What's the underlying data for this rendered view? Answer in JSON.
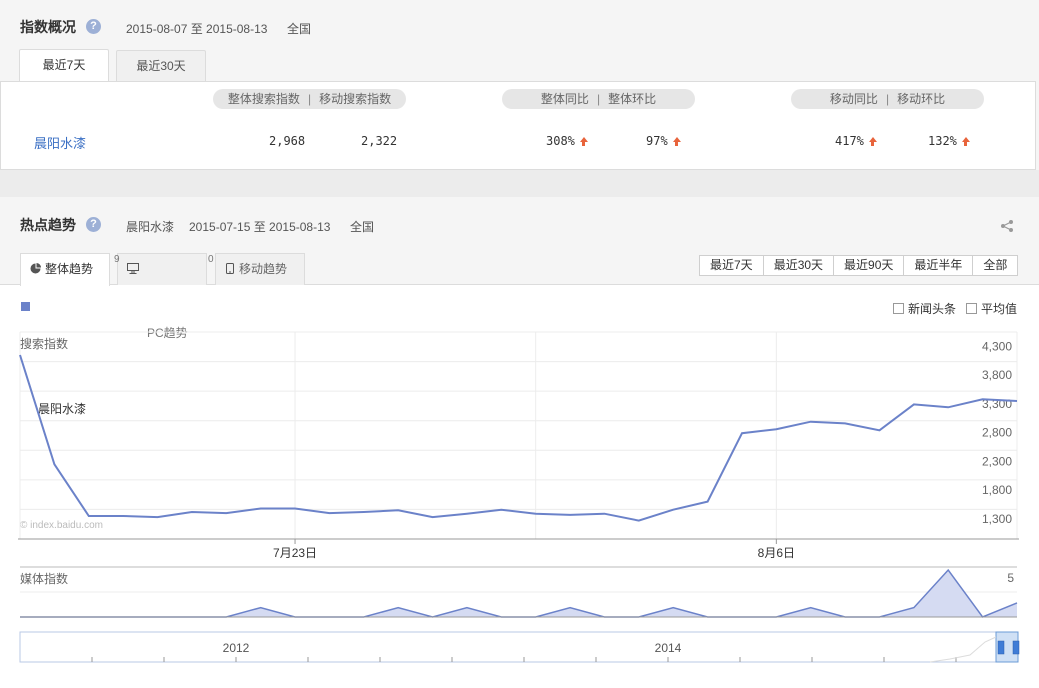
{
  "overview": {
    "title": "指数概况",
    "help": "?",
    "date_range": "2015-08-07 至 2015-08-13",
    "region": "全国",
    "tabs": [
      {
        "label": "最近7天",
        "active": true
      },
      {
        "label": "最近30天",
        "active": false
      }
    ],
    "headers": {
      "group1": [
        "整体搜索指数",
        "移动搜索指数"
      ],
      "group2": [
        "整体同比",
        "整体环比"
      ],
      "group3": [
        "移动同比",
        "移动环比"
      ],
      "separator": "|"
    },
    "row": {
      "keyword": "晨阳水漆",
      "overall_search": "2,968",
      "mobile_search": "2,322",
      "overall_yoy": "308%",
      "overall_mom": "97%",
      "mobile_yoy": "417%",
      "mobile_mom": "132%"
    }
  },
  "trend": {
    "title": "热点趋势",
    "help": "?",
    "keyword": "晨阳水漆",
    "date_range": "2015-07-15 至 2015-08-13",
    "region": "全国",
    "tabs": [
      {
        "label": "整体趋势",
        "icon": "pie-chart-icon",
        "active": true
      },
      {
        "label": "PC趋势",
        "icon": "monitor-icon",
        "active": false
      },
      {
        "label": "移动趋势",
        "icon": "mobile-icon",
        "active": false
      }
    ],
    "range_buttons": [
      "最近7天",
      "最近30天",
      "最近90天",
      "最近半年",
      "全部"
    ],
    "checkboxes": [
      "新闻头条",
      "平均值"
    ],
    "watermark": "© index.baidu.com",
    "tab_overflow_fragment_1": "9",
    "tab_overflow_fragment_2": "0",
    "legend_color": "#6b82c9"
  },
  "chart_data": [
    {
      "type": "line",
      "ylabel": "搜索指数",
      "series": [
        {
          "name": "晨阳水漆",
          "values": [
            4150,
            2250,
            1350,
            1350,
            1330,
            1420,
            1400,
            1480,
            1480,
            1400,
            1420,
            1450,
            1330,
            1390,
            1460,
            1390,
            1370,
            1390,
            1270,
            1460,
            1600,
            2790,
            2860,
            2990,
            2960,
            2840,
            3290,
            3240,
            3380,
            3350
          ]
        }
      ],
      "x_ticks": [
        {
          "label": "7月23日",
          "index": 8
        },
        {
          "label": "8月6日",
          "index": 22
        }
      ],
      "y_ticks": [
        "4,300",
        "3,800",
        "3,300",
        "2,800",
        "2,300",
        "1,800",
        "1,300"
      ],
      "ylim": [
        950,
        4550
      ],
      "grid": true
    },
    {
      "type": "area",
      "ylabel": "媒体指数",
      "series": [
        {
          "values": [
            0,
            0,
            0,
            0,
            0,
            0,
            0,
            1,
            0,
            0,
            0,
            1,
            0,
            1,
            0,
            0,
            1,
            0,
            0,
            1,
            0,
            0,
            0,
            1,
            0,
            0,
            1,
            5,
            0,
            1.5
          ]
        }
      ],
      "y_ticks": [
        "5"
      ],
      "ylim": [
        0,
        5
      ]
    },
    {
      "type": "line",
      "role": "range-navigator",
      "x_ticks": [
        "2012",
        "2014"
      ]
    }
  ]
}
